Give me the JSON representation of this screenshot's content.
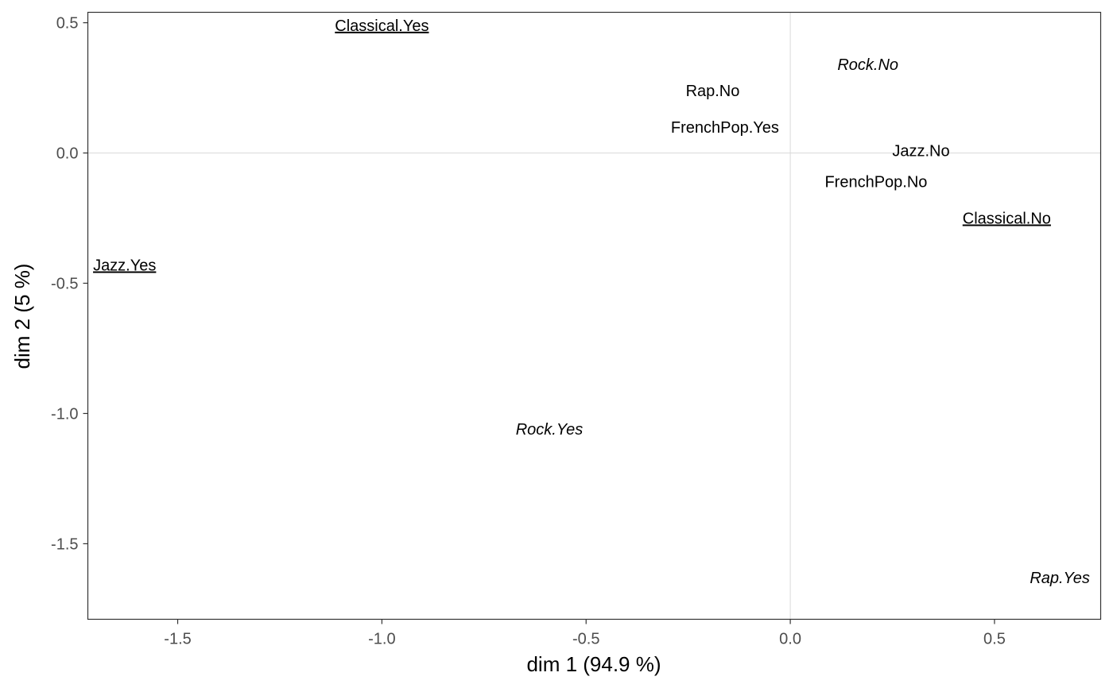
{
  "chart_data": {
    "type": "scatter",
    "title": "",
    "xlabel": "dim 1 (94.9 %)",
    "ylabel": "dim 2 (5 %)",
    "xlim": [
      -1.72,
      0.76
    ],
    "ylim": [
      -1.79,
      0.54
    ],
    "x_ticks": [
      -1.5,
      -1.0,
      -0.5,
      0.0,
      0.5
    ],
    "x_tick_labels": [
      "-1.5",
      "-1.0",
      "-0.5",
      "0.0",
      "0.5"
    ],
    "y_ticks": [
      0.5,
      0.0,
      -0.5,
      -1.0,
      -1.5
    ],
    "y_tick_labels": [
      "0.5",
      "0.0",
      "-0.5",
      "-1.0",
      "-1.5"
    ],
    "reference_lines": {
      "x": 0,
      "y": 0
    },
    "grid": false,
    "points": [
      {
        "label": "Classical.Yes",
        "x": -1.0,
        "y": 0.49,
        "style": "underline"
      },
      {
        "label": "Rock.No",
        "x": 0.19,
        "y": 0.34,
        "style": "italic"
      },
      {
        "label": "Rap.No",
        "x": -0.19,
        "y": 0.24,
        "style": "plain"
      },
      {
        "label": "FrenchPop.Yes",
        "x": -0.16,
        "y": 0.1,
        "style": "plain"
      },
      {
        "label": "Jazz.No",
        "x": 0.32,
        "y": 0.01,
        "style": "plain"
      },
      {
        "label": "FrenchPop.No",
        "x": 0.21,
        "y": -0.11,
        "style": "plain"
      },
      {
        "label": "Classical.No",
        "x": 0.53,
        "y": -0.25,
        "style": "underline"
      },
      {
        "label": "Jazz.Yes",
        "x": -1.63,
        "y": -0.43,
        "style": "underline"
      },
      {
        "label": "Rock.Yes",
        "x": -0.59,
        "y": -1.06,
        "style": "italic"
      },
      {
        "label": "Rap.Yes",
        "x": 0.66,
        "y": -1.63,
        "style": "italic"
      }
    ]
  }
}
